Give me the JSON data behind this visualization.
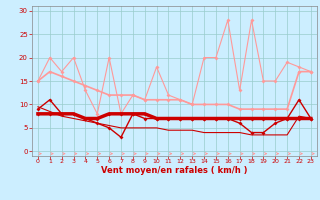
{
  "xlabel": "Vent moyen/en rafales ( km/h )",
  "bg_color": "#cceeff",
  "grid_color": "#99cccc",
  "x_ticks": [
    0,
    1,
    2,
    3,
    4,
    5,
    6,
    7,
    8,
    9,
    10,
    11,
    12,
    13,
    14,
    15,
    16,
    17,
    18,
    19,
    20,
    21,
    22,
    23
  ],
  "ylim": [
    -1,
    31
  ],
  "xlim": [
    -0.5,
    23.5
  ],
  "yticks": [
    0,
    5,
    10,
    15,
    20,
    25,
    30
  ],
  "line1_x": [
    0,
    1,
    2,
    3,
    4,
    5,
    6,
    7,
    8,
    9,
    10,
    11,
    12,
    13,
    14,
    15,
    16,
    17,
    18,
    19,
    20,
    21,
    22,
    23
  ],
  "line1_y": [
    15,
    20,
    17,
    20,
    13,
    8,
    20,
    8,
    12,
    11,
    18,
    12,
    11,
    10,
    20,
    20,
    28,
    13,
    28,
    15,
    15,
    19,
    18,
    17
  ],
  "line1_color": "#ff9999",
  "line1_lw": 0.8,
  "line2_x": [
    0,
    1,
    2,
    3,
    4,
    5,
    6,
    7,
    8,
    9,
    10,
    11,
    12,
    13,
    14,
    15,
    16,
    17,
    18,
    19,
    20,
    21,
    22,
    23
  ],
  "line2_y": [
    15,
    17,
    16,
    15,
    14,
    13,
    12,
    12,
    12,
    11,
    11,
    11,
    11,
    10,
    10,
    10,
    10,
    9,
    9,
    9,
    9,
    9,
    17,
    17
  ],
  "line2_color": "#ff9999",
  "line2_lw": 1.2,
  "line3_x": [
    0,
    1,
    2,
    3,
    4,
    5,
    6,
    7,
    8,
    9,
    10,
    11,
    12,
    13,
    14,
    15,
    16,
    17,
    18,
    19,
    20,
    21,
    22,
    23
  ],
  "line3_y": [
    9,
    11,
    8,
    8,
    7,
    6,
    5,
    3,
    8,
    7,
    7,
    7,
    7,
    7,
    7,
    7,
    7,
    6,
    4,
    4,
    6,
    7,
    11,
    7
  ],
  "line3_color": "#cc0000",
  "line3_lw": 1.0,
  "line4_x": [
    0,
    1,
    2,
    3,
    4,
    5,
    6,
    7,
    8,
    9,
    10,
    11,
    12,
    13,
    14,
    15,
    16,
    17,
    18,
    19,
    20,
    21,
    22,
    23
  ],
  "line4_y": [
    8,
    8,
    8,
    8,
    7,
    7,
    8,
    8,
    8,
    8,
    7,
    7,
    7,
    7,
    7,
    7,
    7,
    7,
    7,
    7,
    7,
    7,
    7,
    7
  ],
  "line4_color": "#cc0000",
  "line4_lw": 2.5,
  "line5_x": [
    0,
    1,
    2,
    3,
    4,
    5,
    6,
    7,
    8,
    9,
    10,
    11,
    12,
    13,
    14,
    15,
    16,
    17,
    18,
    19,
    20,
    21,
    22,
    23
  ],
  "line5_y": [
    9.5,
    8.5,
    7.5,
    7.0,
    6.5,
    6.0,
    5.5,
    5.0,
    5.0,
    5.0,
    5.0,
    4.5,
    4.5,
    4.5,
    4.0,
    4.0,
    4.0,
    4.0,
    3.5,
    3.5,
    3.5,
    3.5,
    7.5,
    7.0
  ],
  "line5_color": "#cc0000",
  "line5_lw": 0.8,
  "arrow_color": "#ff9999",
  "arrow_dark_color": "#cc0000",
  "xlabel_color": "#cc0000",
  "tick_color": "#cc0000",
  "axis_color": "#888888",
  "marker_size": 2.0
}
